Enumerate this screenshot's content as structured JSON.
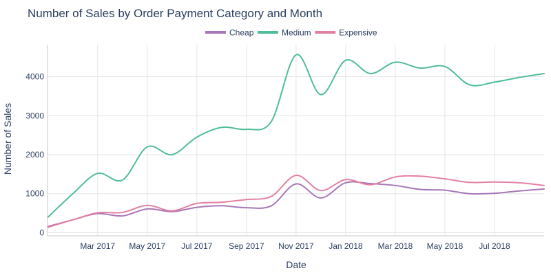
{
  "chart_data": {
    "type": "line",
    "title": "Number of Sales by Order Payment Category and Month",
    "xlabel": "Date",
    "ylabel": "Number of Sales",
    "x": [
      "2017-01",
      "2017-02",
      "2017-03",
      "2017-04",
      "2017-05",
      "2017-06",
      "2017-07",
      "2017-08",
      "2017-09",
      "2017-10",
      "2017-11",
      "2017-12",
      "2018-01",
      "2018-02",
      "2018-03",
      "2018-04",
      "2018-05",
      "2018-06",
      "2018-07",
      "2018-08",
      "2018-09"
    ],
    "x_ticks": [
      {
        "date": "2017-03",
        "label": "Mar 2017"
      },
      {
        "date": "2017-05",
        "label": "May 2017"
      },
      {
        "date": "2017-07",
        "label": "Jul 2017"
      },
      {
        "date": "2017-09",
        "label": "Sep 2017"
      },
      {
        "date": "2017-11",
        "label": "Nov 2017"
      },
      {
        "date": "2018-01",
        "label": "Jan 2018"
      },
      {
        "date": "2018-03",
        "label": "Mar 2018"
      },
      {
        "date": "2018-05",
        "label": "May 2018"
      },
      {
        "date": "2018-07",
        "label": "Jul 2018"
      }
    ],
    "ylim": [
      -80,
      4820
    ],
    "y_ticks": [
      0,
      1000,
      2000,
      3000,
      4000
    ],
    "grid": true,
    "legend_position": "top-center",
    "series": [
      {
        "name": "Cheap",
        "color": "#a777b8",
        "values": [
          160,
          330,
          490,
          430,
          610,
          540,
          650,
          690,
          640,
          690,
          1250,
          890,
          1280,
          1260,
          1210,
          1110,
          1090,
          1000,
          1010,
          1070,
          1120
        ]
      },
      {
        "name": "Medium",
        "color": "#4ebd98",
        "values": [
          400,
          1000,
          1520,
          1350,
          2200,
          2000,
          2450,
          2700,
          2650,
          2850,
          4560,
          3540,
          4420,
          4080,
          4370,
          4220,
          4260,
          3790,
          3860,
          3980,
          4080
        ]
      },
      {
        "name": "Expensive",
        "color": "#e47fa4",
        "values": [
          140,
          330,
          510,
          520,
          700,
          560,
          750,
          780,
          850,
          930,
          1470,
          1080,
          1360,
          1230,
          1430,
          1450,
          1380,
          1290,
          1300,
          1280,
          1210
        ]
      }
    ]
  }
}
